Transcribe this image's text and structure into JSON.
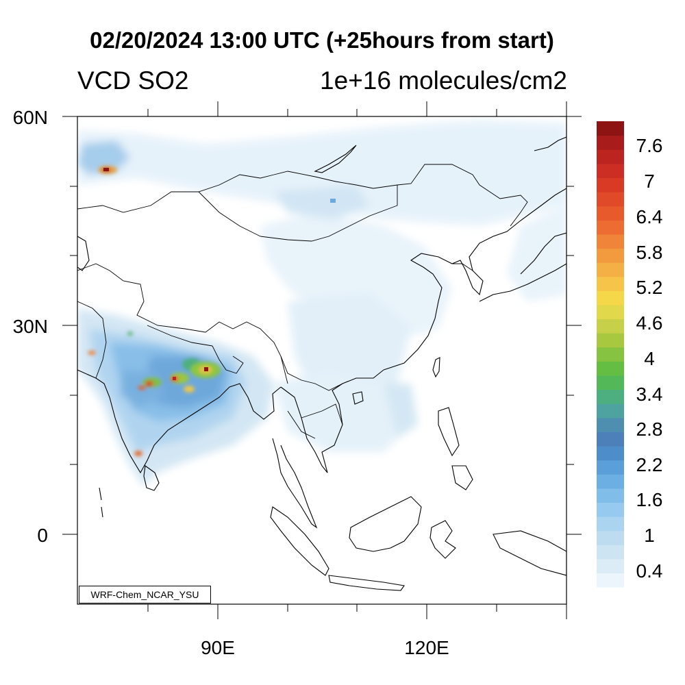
{
  "title": "02/20/2024 13:00 UTC (+25hours from start)",
  "variable": "VCD SO2",
  "units": "1e+16 molecules/cm2",
  "map": {
    "projection": "Mercator",
    "lat_range": [
      -10,
      60
    ],
    "lon_range": [
      70,
      140
    ],
    "lat_labels": [
      "60N",
      "30N",
      "0"
    ],
    "lon_labels": [
      "90E",
      "120E"
    ],
    "hotspots": [
      "north India / Bangladesh",
      "central India",
      "southwest Siberia",
      "south India"
    ]
  },
  "colorbar": {
    "labels": [
      "7.6",
      "7",
      "6.4",
      "5.8",
      "5.2",
      "4.6",
      "4",
      "3.4",
      "2.8",
      "2.2",
      "1.6",
      "1",
      "0.4"
    ],
    "colors": [
      "#ebf5fb",
      "#dcecf6",
      "#cde4f2",
      "#bddcf0",
      "#aad4f0",
      "#96caee",
      "#80bde9",
      "#6cafe2",
      "#5a9fd8",
      "#4d8dc8",
      "#4d7fb8",
      "#4e8fb0",
      "#4ea3a0",
      "#4daf80",
      "#52b858",
      "#64be44",
      "#86c340",
      "#a8c840",
      "#c6d048",
      "#e2d84c",
      "#f4d84a",
      "#f6c448",
      "#f4b044",
      "#f29a3e",
      "#f08438",
      "#ec6c32",
      "#e65a2c",
      "#e04a28",
      "#d83a26",
      "#cc2e24",
      "#bc2420",
      "#a81c1c",
      "#8e1414"
    ]
  },
  "credit": "WRF-Chem_NCAR_YSU"
}
